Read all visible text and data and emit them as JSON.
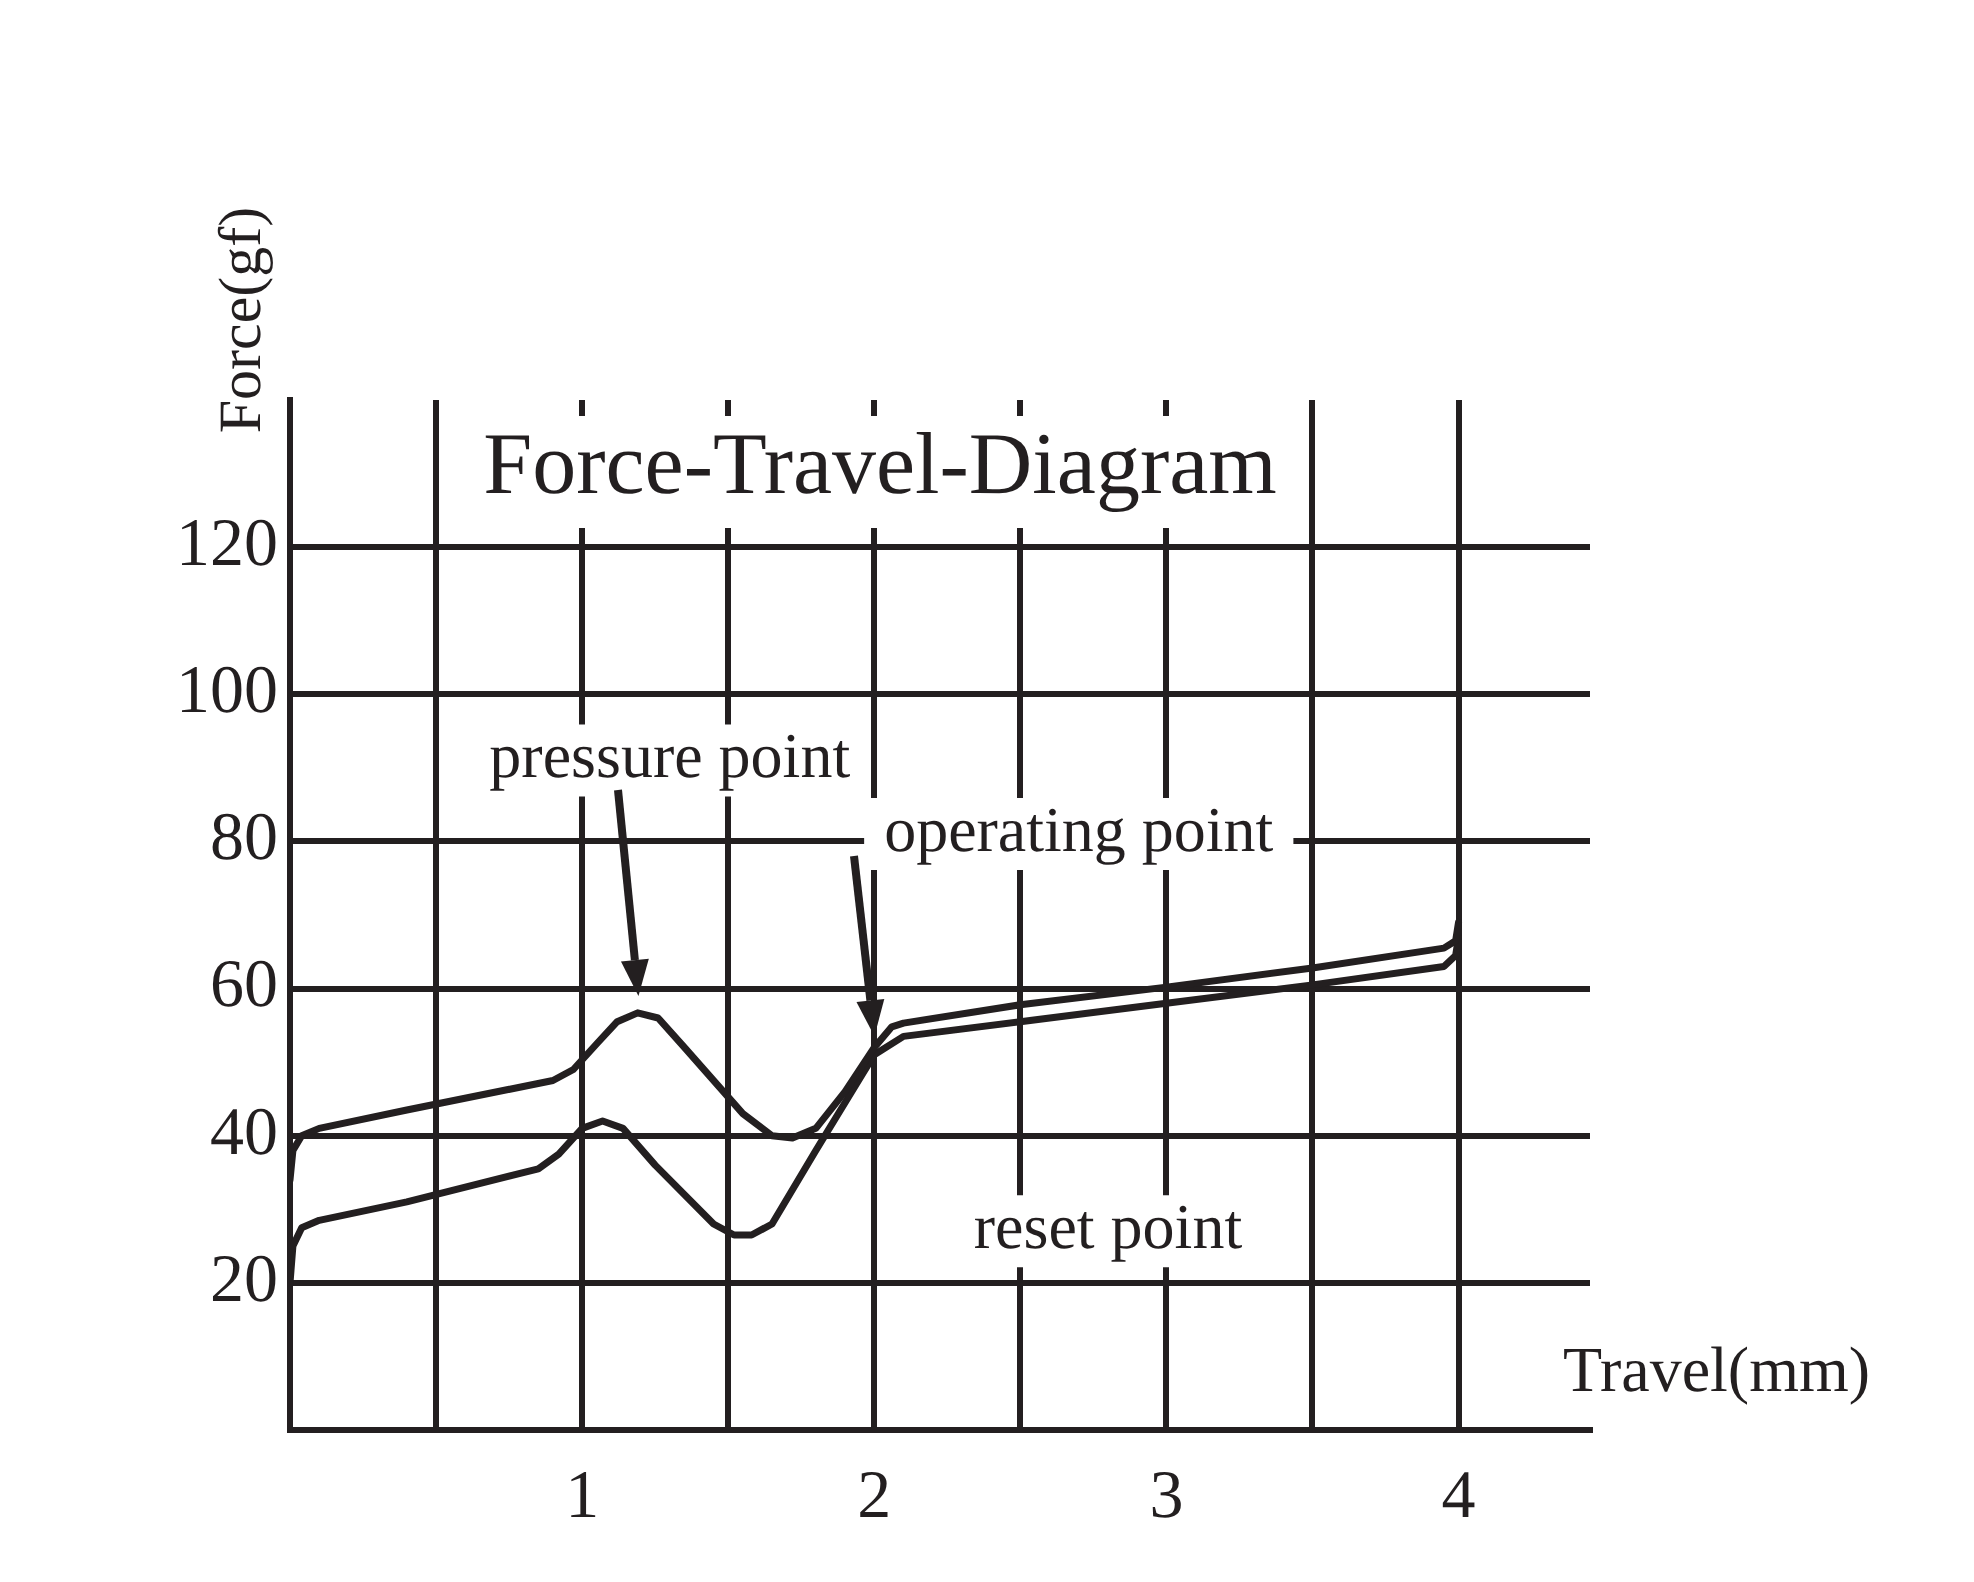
{
  "chart_data": {
    "type": "line",
    "title": "Force-Travel-Diagram",
    "xlabel": "Travel(mm)",
    "ylabel": "Force(gf)",
    "xlim": [
      0,
      4.45
    ],
    "xticks": [
      {
        "value": 0,
        "label": null
      },
      {
        "value": 0.5,
        "label": null
      },
      1,
      {
        "value": 1.5,
        "label": null
      },
      2,
      {
        "value": 2.5,
        "label": null
      },
      3,
      {
        "value": 3.5,
        "label": null
      },
      4
    ],
    "ylim": [
      0,
      140
    ],
    "yticks": [
      {
        "value": 0,
        "label": null
      },
      20,
      40,
      60,
      80,
      100,
      120
    ],
    "grid": true,
    "legend": false,
    "marker": "none",
    "line_style": "solid",
    "series": [
      {
        "color": "#231f20",
        "x": [
          0,
          0.01,
          0.04,
          0.1,
          0.4,
          0.9,
          0.97,
          1.05,
          1.12,
          1.19,
          1.26,
          1.35,
          1.55,
          1.65,
          1.72,
          1.8,
          1.9,
          2.0,
          2.06,
          2.1,
          2.5,
          3.0,
          3.5,
          3.95,
          3.99,
          4.0
        ],
        "values": [
          34,
          38,
          40,
          41,
          43.5,
          47.5,
          49,
          52.5,
          55.5,
          56.7,
          56,
          52,
          43,
          40,
          39.7,
          41,
          46,
          52,
          54.8,
          55.3,
          57.8,
          60.2,
          62.8,
          65.5,
          66.5,
          69
        ]
      },
      {
        "color": "#231f20",
        "x": [
          0,
          0.01,
          0.04,
          0.1,
          0.4,
          0.85,
          0.92,
          1.0,
          1.07,
          1.14,
          1.25,
          1.45,
          1.52,
          1.58,
          1.65,
          1.8,
          2.0,
          2.1,
          2.5,
          3.0,
          3.5,
          3.95,
          3.99,
          4.0
        ],
        "values": [
          20,
          25,
          27.5,
          28.5,
          31,
          35.5,
          37.5,
          41,
          42,
          41,
          36,
          28,
          26.5,
          26.5,
          28,
          38,
          51,
          53.5,
          55.5,
          58,
          60.5,
          63,
          64.5,
          67
        ]
      }
    ],
    "annotations": [
      "pressure point",
      "operating point",
      "reset point"
    ]
  }
}
